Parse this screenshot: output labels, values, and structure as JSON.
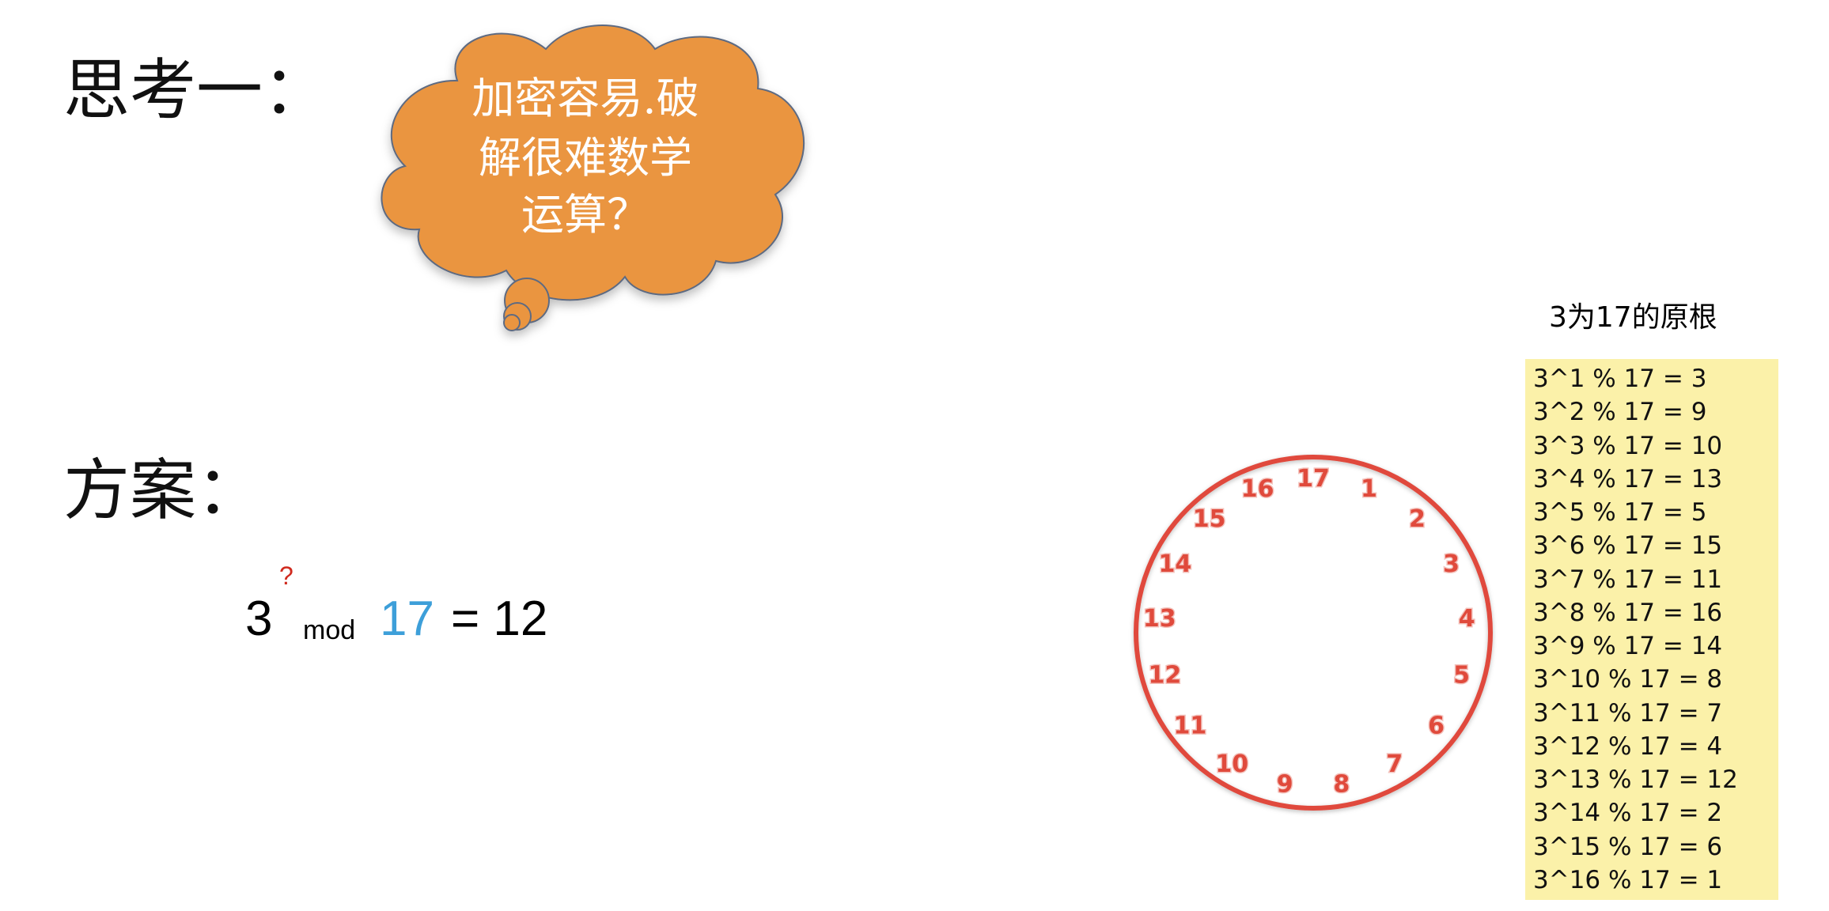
{
  "headings": {
    "thinking_one": "思考一：",
    "scheme": "方案："
  },
  "cloud": {
    "lines": [
      "加密容易.破",
      "解很难数学",
      "运算？"
    ],
    "fill_color": "#ea9541",
    "border_color": "#5d6b82"
  },
  "formula": {
    "base": "3",
    "exponent": "?",
    "mod": "mod",
    "modulus": "17",
    "rest": "= 12"
  },
  "clock": {
    "numbers": [
      "17",
      "1",
      "2",
      "3",
      "4",
      "5",
      "6",
      "7",
      "8",
      "9",
      "10",
      "11",
      "12",
      "13",
      "14",
      "15",
      "16"
    ],
    "color": "#e04a3c"
  },
  "table": {
    "caption": "3为17的原根",
    "rows": [
      "3^1 %  17 = 3",
      "3^2  %  17 = 9",
      "3^3  %  17 = 10",
      "3^4  %  17 = 13",
      "3^5  %  17 = 5",
      "3^6  %  17 = 15",
      "3^7  %  17 = 11",
      "3^8  %  17 = 16",
      "3^9  %  17 = 14",
      "3^10  %  17 = 8",
      "3^11  %  17 = 7",
      "3^12  %  17 = 4",
      "3^13  %  17 = 12",
      "3^14  %  17 = 2",
      "3^15  %  17 = 6",
      "3^16  %  17 = 1"
    ],
    "background_color": "#fbf1a9"
  }
}
